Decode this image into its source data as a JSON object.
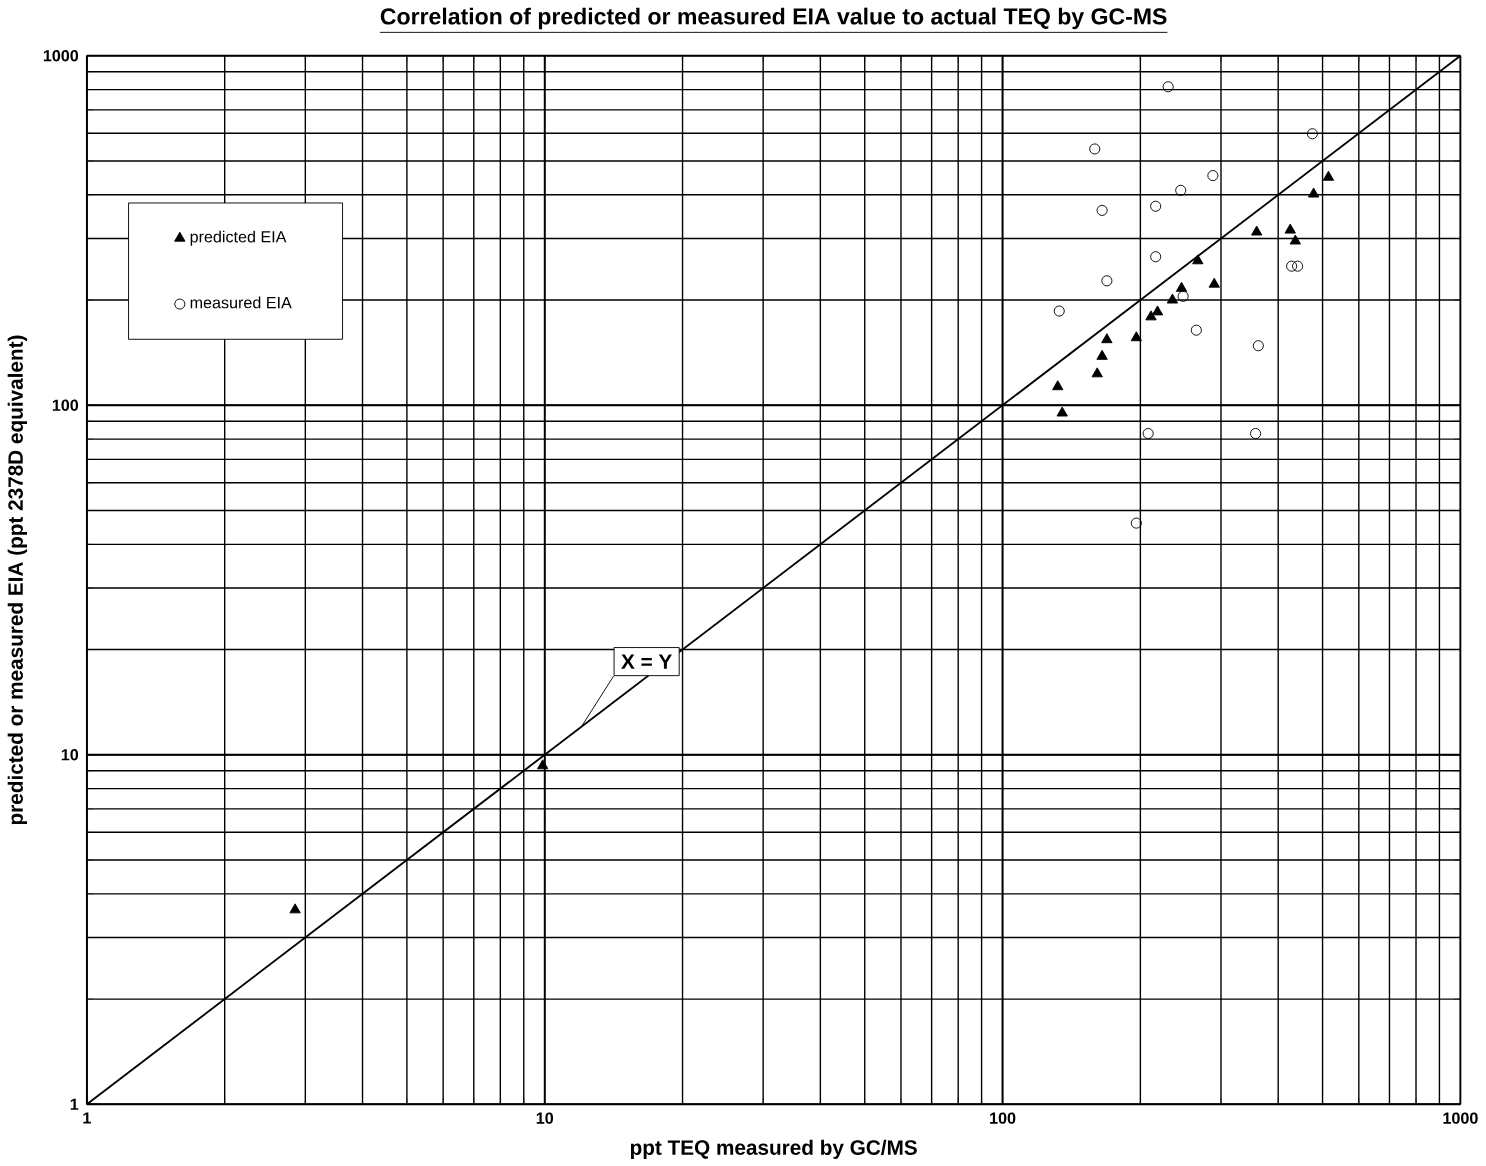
{
  "chart_data": {
    "type": "scatter",
    "title": "Correlation of predicted or measured EIA value to actual TEQ by GC-MS",
    "xlabel": "ppt TEQ measured by GC/MS",
    "ylabel": "predicted or measured EIA (ppt 2378D equivalent)",
    "log": "xy",
    "grid": true,
    "legend": "top left",
    "xlim": [
      1,
      1000
    ],
    "ylim": [
      1,
      1000
    ],
    "xticks": [
      1,
      10,
      100,
      1000
    ],
    "yticks": [
      1,
      10,
      100,
      1000
    ],
    "series": [
      {
        "name": "predicted EIA",
        "color": "#000000",
        "marker": "triangle",
        "x": [
          2.85,
          9.9,
          132,
          135,
          161,
          165,
          169,
          196,
          211,
          218,
          235,
          246,
          267,
          290,
          359,
          425,
          436,
          478,
          515
        ],
        "values": [
          3.6,
          9.3,
          113,
          95,
          123,
          138,
          154,
          156,
          179,
          185,
          200,
          216,
          259,
          222,
          313,
          317,
          295,
          402,
          449
        ]
      },
      {
        "name": "measured EIA",
        "color": "#000000",
        "marker": "circle",
        "x": [
          230,
          475,
          159,
          288,
          245,
          216,
          165,
          216,
          169,
          428,
          441,
          133,
          248,
          265,
          362,
          208,
          357,
          196
        ],
        "values": [
          815,
          598,
          541,
          454,
          412,
          371,
          361,
          266,
          227,
          250,
          250,
          186,
          205,
          164,
          148,
          83,
          83,
          46
        ]
      },
      {
        "name": "X = Y",
        "type": "line",
        "color": "#000000",
        "marker": "none",
        "x": [
          1,
          1000
        ],
        "values": [
          1,
          1000
        ]
      }
    ]
  }
}
